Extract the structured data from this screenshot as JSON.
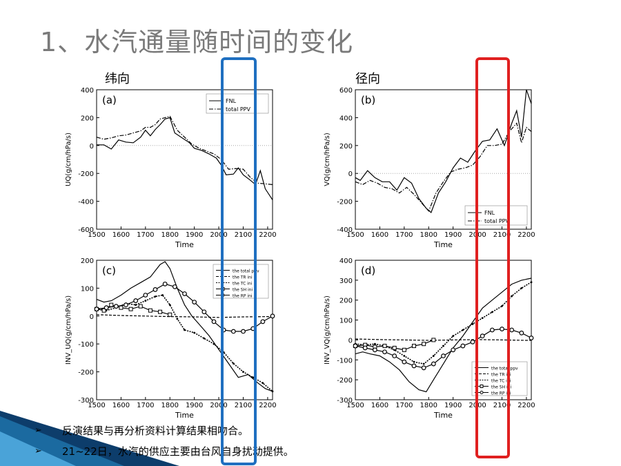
{
  "title": "1、水汽通量随时间的变化",
  "labels": {
    "left": "纬向",
    "right": "径向"
  },
  "bullets": [
    "反演结果与再分析资料计算结果相吻合。",
    "21~22日，水汽的供应主要由台风自身扰动提供。"
  ],
  "highlight_colors": {
    "blue": "#1f6fc0",
    "red": "#e02020"
  },
  "chart_data": [
    {
      "id": "a",
      "type": "line",
      "panel_label": "(a)",
      "xlabel": "Time",
      "ylabel": "UQ(g/cm/hPa/s)",
      "xlim": [
        1500,
        2220
      ],
      "ylim": [
        -600,
        400
      ],
      "xticks": [
        1500,
        1600,
        1700,
        1800,
        1900,
        2000,
        2100,
        2200
      ],
      "yticks": [
        400,
        200,
        0,
        -200,
        -400,
        -600
      ],
      "zero_line": true,
      "legend": "top-right",
      "series": [
        {
          "name": "FNL",
          "style": "solid",
          "x": [
            1500,
            1530,
            1560,
            1590,
            1620,
            1650,
            1680,
            1700,
            1720,
            1740,
            1760,
            1780,
            1800,
            1820,
            1850,
            1880,
            1900,
            1930,
            1960,
            1990,
            2010,
            2030,
            2060,
            2080,
            2100,
            2130,
            2150,
            2170,
            2190,
            2220
          ],
          "y": [
            5,
            5,
            -25,
            40,
            25,
            20,
            60,
            110,
            70,
            115,
            150,
            190,
            200,
            90,
            55,
            20,
            -20,
            -35,
            -60,
            -90,
            -140,
            -210,
            -205,
            -160,
            -210,
            -250,
            -280,
            -180,
            -310,
            -390
          ]
        },
        {
          "name": "total PPV",
          "style": "dashdot",
          "x": [
            1500,
            1530,
            1560,
            1590,
            1620,
            1650,
            1680,
            1700,
            1720,
            1740,
            1760,
            1780,
            1800,
            1830,
            1860,
            1890,
            1920,
            1950,
            1980,
            2010,
            2040,
            2070,
            2100,
            2130,
            2160,
            2190,
            2220
          ],
          "y": [
            60,
            45,
            55,
            70,
            75,
            90,
            105,
            130,
            130,
            150,
            190,
            200,
            210,
            110,
            60,
            10,
            -20,
            -40,
            -60,
            -100,
            -170,
            -165,
            -170,
            -230,
            -270,
            -275,
            -280
          ]
        }
      ]
    },
    {
      "id": "b",
      "type": "line",
      "panel_label": "(b)",
      "xlabel": "Time",
      "ylabel": "VQ(g/cm/hPa/s)",
      "xlim": [
        1500,
        2220
      ],
      "ylim": [
        -400,
        600
      ],
      "xticks": [
        1500,
        1600,
        1700,
        1800,
        1900,
        2000,
        2100,
        2200
      ],
      "yticks": [
        600,
        400,
        200,
        0,
        -200,
        -400
      ],
      "zero_line": true,
      "legend": "bottom-right",
      "series": [
        {
          "name": "FNL",
          "style": "solid",
          "x": [
            1500,
            1520,
            1550,
            1580,
            1610,
            1640,
            1670,
            1700,
            1730,
            1760,
            1790,
            1810,
            1840,
            1870,
            1900,
            1930,
            1960,
            1990,
            2020,
            2050,
            2080,
            2110,
            2140,
            2160,
            2180,
            2200,
            2220
          ],
          "y": [
            -30,
            -50,
            20,
            -30,
            -60,
            -60,
            -120,
            -30,
            -70,
            -180,
            -250,
            -280,
            -140,
            -60,
            40,
            110,
            80,
            160,
            230,
            240,
            320,
            200,
            360,
            450,
            260,
            600,
            500
          ]
        },
        {
          "name": "total PPV",
          "style": "dashdot",
          "x": [
            1500,
            1530,
            1560,
            1590,
            1620,
            1650,
            1680,
            1710,
            1740,
            1770,
            1800,
            1830,
            1860,
            1890,
            1920,
            1950,
            1980,
            2010,
            2040,
            2070,
            2100,
            2130,
            2160,
            2180,
            2200,
            2220
          ],
          "y": [
            -60,
            -80,
            -50,
            -70,
            -100,
            -110,
            -140,
            -100,
            -150,
            -210,
            -270,
            -140,
            -60,
            10,
            30,
            40,
            60,
            120,
            200,
            200,
            210,
            300,
            360,
            220,
            330,
            300
          ]
        }
      ]
    },
    {
      "id": "c",
      "type": "line",
      "panel_label": "(c)",
      "xlabel": "Time",
      "ylabel": "INV_UQ(g/cm/hPa/s)",
      "xlim": [
        1500,
        2220
      ],
      "ylim": [
        -300,
        200
      ],
      "xticks": [
        1500,
        1600,
        1700,
        1800,
        1900,
        2000,
        2100,
        2200
      ],
      "yticks": [
        200,
        100,
        0,
        -100,
        -200,
        -300
      ],
      "legend": "top-right",
      "series": [
        {
          "name": "the total ppv",
          "style": "solid",
          "x": [
            1500,
            1530,
            1560,
            1600,
            1640,
            1680,
            1720,
            1760,
            1780,
            1800,
            1830,
            1860,
            1890,
            1920,
            1960,
            2000,
            2040,
            2080,
            2120,
            2160,
            2190,
            2220
          ],
          "y": [
            60,
            50,
            55,
            75,
            100,
            120,
            140,
            185,
            195,
            170,
            100,
            40,
            0,
            -30,
            -70,
            -120,
            -170,
            -220,
            -210,
            -240,
            -260,
            -270
          ]
        },
        {
          "name": "the TR ini",
          "style": "dashed",
          "x": [
            1500,
            1600,
            1700,
            1800,
            1900,
            2000,
            2100,
            2200,
            2220
          ],
          "y": [
            5,
            2,
            0,
            -2,
            -3,
            -5,
            -3,
            -2,
            -2
          ]
        },
        {
          "name": "the TC ini",
          "style": "dotted",
          "x": [
            1500,
            1540,
            1580,
            1620,
            1660,
            1700,
            1740,
            1770,
            1800,
            1830,
            1860,
            1900,
            1940,
            1980,
            2020,
            2060,
            2100,
            2140,
            2180,
            2220
          ],
          "y": [
            30,
            20,
            30,
            45,
            40,
            55,
            70,
            75,
            40,
            -10,
            -50,
            -60,
            -80,
            -100,
            -130,
            -170,
            -200,
            -220,
            -240,
            -270
          ]
        },
        {
          "name": "the SH ini",
          "style": "square-marker",
          "x": [
            1500,
            1530,
            1560,
            1600,
            1640,
            1680,
            1720,
            1760,
            1800
          ],
          "y": [
            25,
            20,
            40,
            30,
            25,
            35,
            20,
            15,
            5
          ]
        },
        {
          "name": "the RP ini",
          "style": "circle-marker",
          "x": [
            1500,
            1540,
            1580,
            1620,
            1660,
            1700,
            1740,
            1780,
            1820,
            1860,
            1900,
            1940,
            1980,
            2020,
            2060,
            2100,
            2140,
            2180,
            2220
          ],
          "y": [
            25,
            30,
            35,
            40,
            55,
            75,
            95,
            115,
            105,
            80,
            50,
            15,
            -20,
            -50,
            -55,
            -55,
            -45,
            -20,
            0
          ]
        }
      ]
    },
    {
      "id": "d",
      "type": "line",
      "panel_label": "(d)",
      "xlabel": "Time",
      "ylabel": "INV_VQ(g/cm/hPa/s)",
      "xlim": [
        1500,
        2220
      ],
      "ylim": [
        -300,
        400
      ],
      "xticks": [
        1500,
        1600,
        1700,
        1800,
        1900,
        2000,
        2100,
        2200
      ],
      "yticks": [
        400,
        300,
        200,
        100,
        0,
        -100,
        -200,
        -300
      ],
      "legend": "bottom-right",
      "series": [
        {
          "name": "the total ppv",
          "style": "solid",
          "x": [
            1500,
            1530,
            1560,
            1600,
            1640,
            1680,
            1720,
            1760,
            1790,
            1820,
            1860,
            1900,
            1940,
            1980,
            2020,
            2060,
            2100,
            2140,
            2180,
            2220
          ],
          "y": [
            -70,
            -60,
            -70,
            -80,
            -110,
            -150,
            -210,
            -250,
            -260,
            -200,
            -120,
            -40,
            20,
            90,
            160,
            200,
            240,
            280,
            300,
            310
          ]
        },
        {
          "name": "the TR ini",
          "style": "dashed",
          "x": [
            1500,
            1600,
            1700,
            1800,
            1900,
            2000,
            2100,
            2200,
            2220
          ],
          "y": [
            5,
            2,
            0,
            -2,
            0,
            2,
            0,
            -2,
            -2
          ]
        },
        {
          "name": "the TC ini",
          "style": "dotted",
          "x": [
            1500,
            1540,
            1580,
            1620,
            1660,
            1700,
            1740,
            1780,
            1820,
            1860,
            1900,
            1940,
            1980,
            2020,
            2060,
            2100,
            2140,
            2180,
            2220
          ],
          "y": [
            -20,
            -25,
            -20,
            -30,
            -50,
            -80,
            -110,
            -120,
            -80,
            -30,
            20,
            50,
            80,
            110,
            140,
            170,
            220,
            260,
            290
          ]
        },
        {
          "name": "the SH ini",
          "style": "square-marker",
          "x": [
            1500,
            1540,
            1580,
            1620,
            1660,
            1700,
            1740,
            1780,
            1820
          ],
          "y": [
            -30,
            -25,
            -35,
            -30,
            -40,
            -50,
            -30,
            -20,
            0
          ]
        },
        {
          "name": "the RP ini",
          "style": "circle-marker",
          "x": [
            1500,
            1540,
            1580,
            1620,
            1660,
            1700,
            1740,
            1780,
            1820,
            1860,
            1900,
            1940,
            1980,
            2020,
            2060,
            2100,
            2140,
            2180,
            2220
          ],
          "y": [
            -30,
            -40,
            -50,
            -60,
            -80,
            -110,
            -130,
            -140,
            -120,
            -80,
            -50,
            -30,
            -10,
            20,
            50,
            55,
            50,
            35,
            10
          ]
        }
      ]
    }
  ]
}
